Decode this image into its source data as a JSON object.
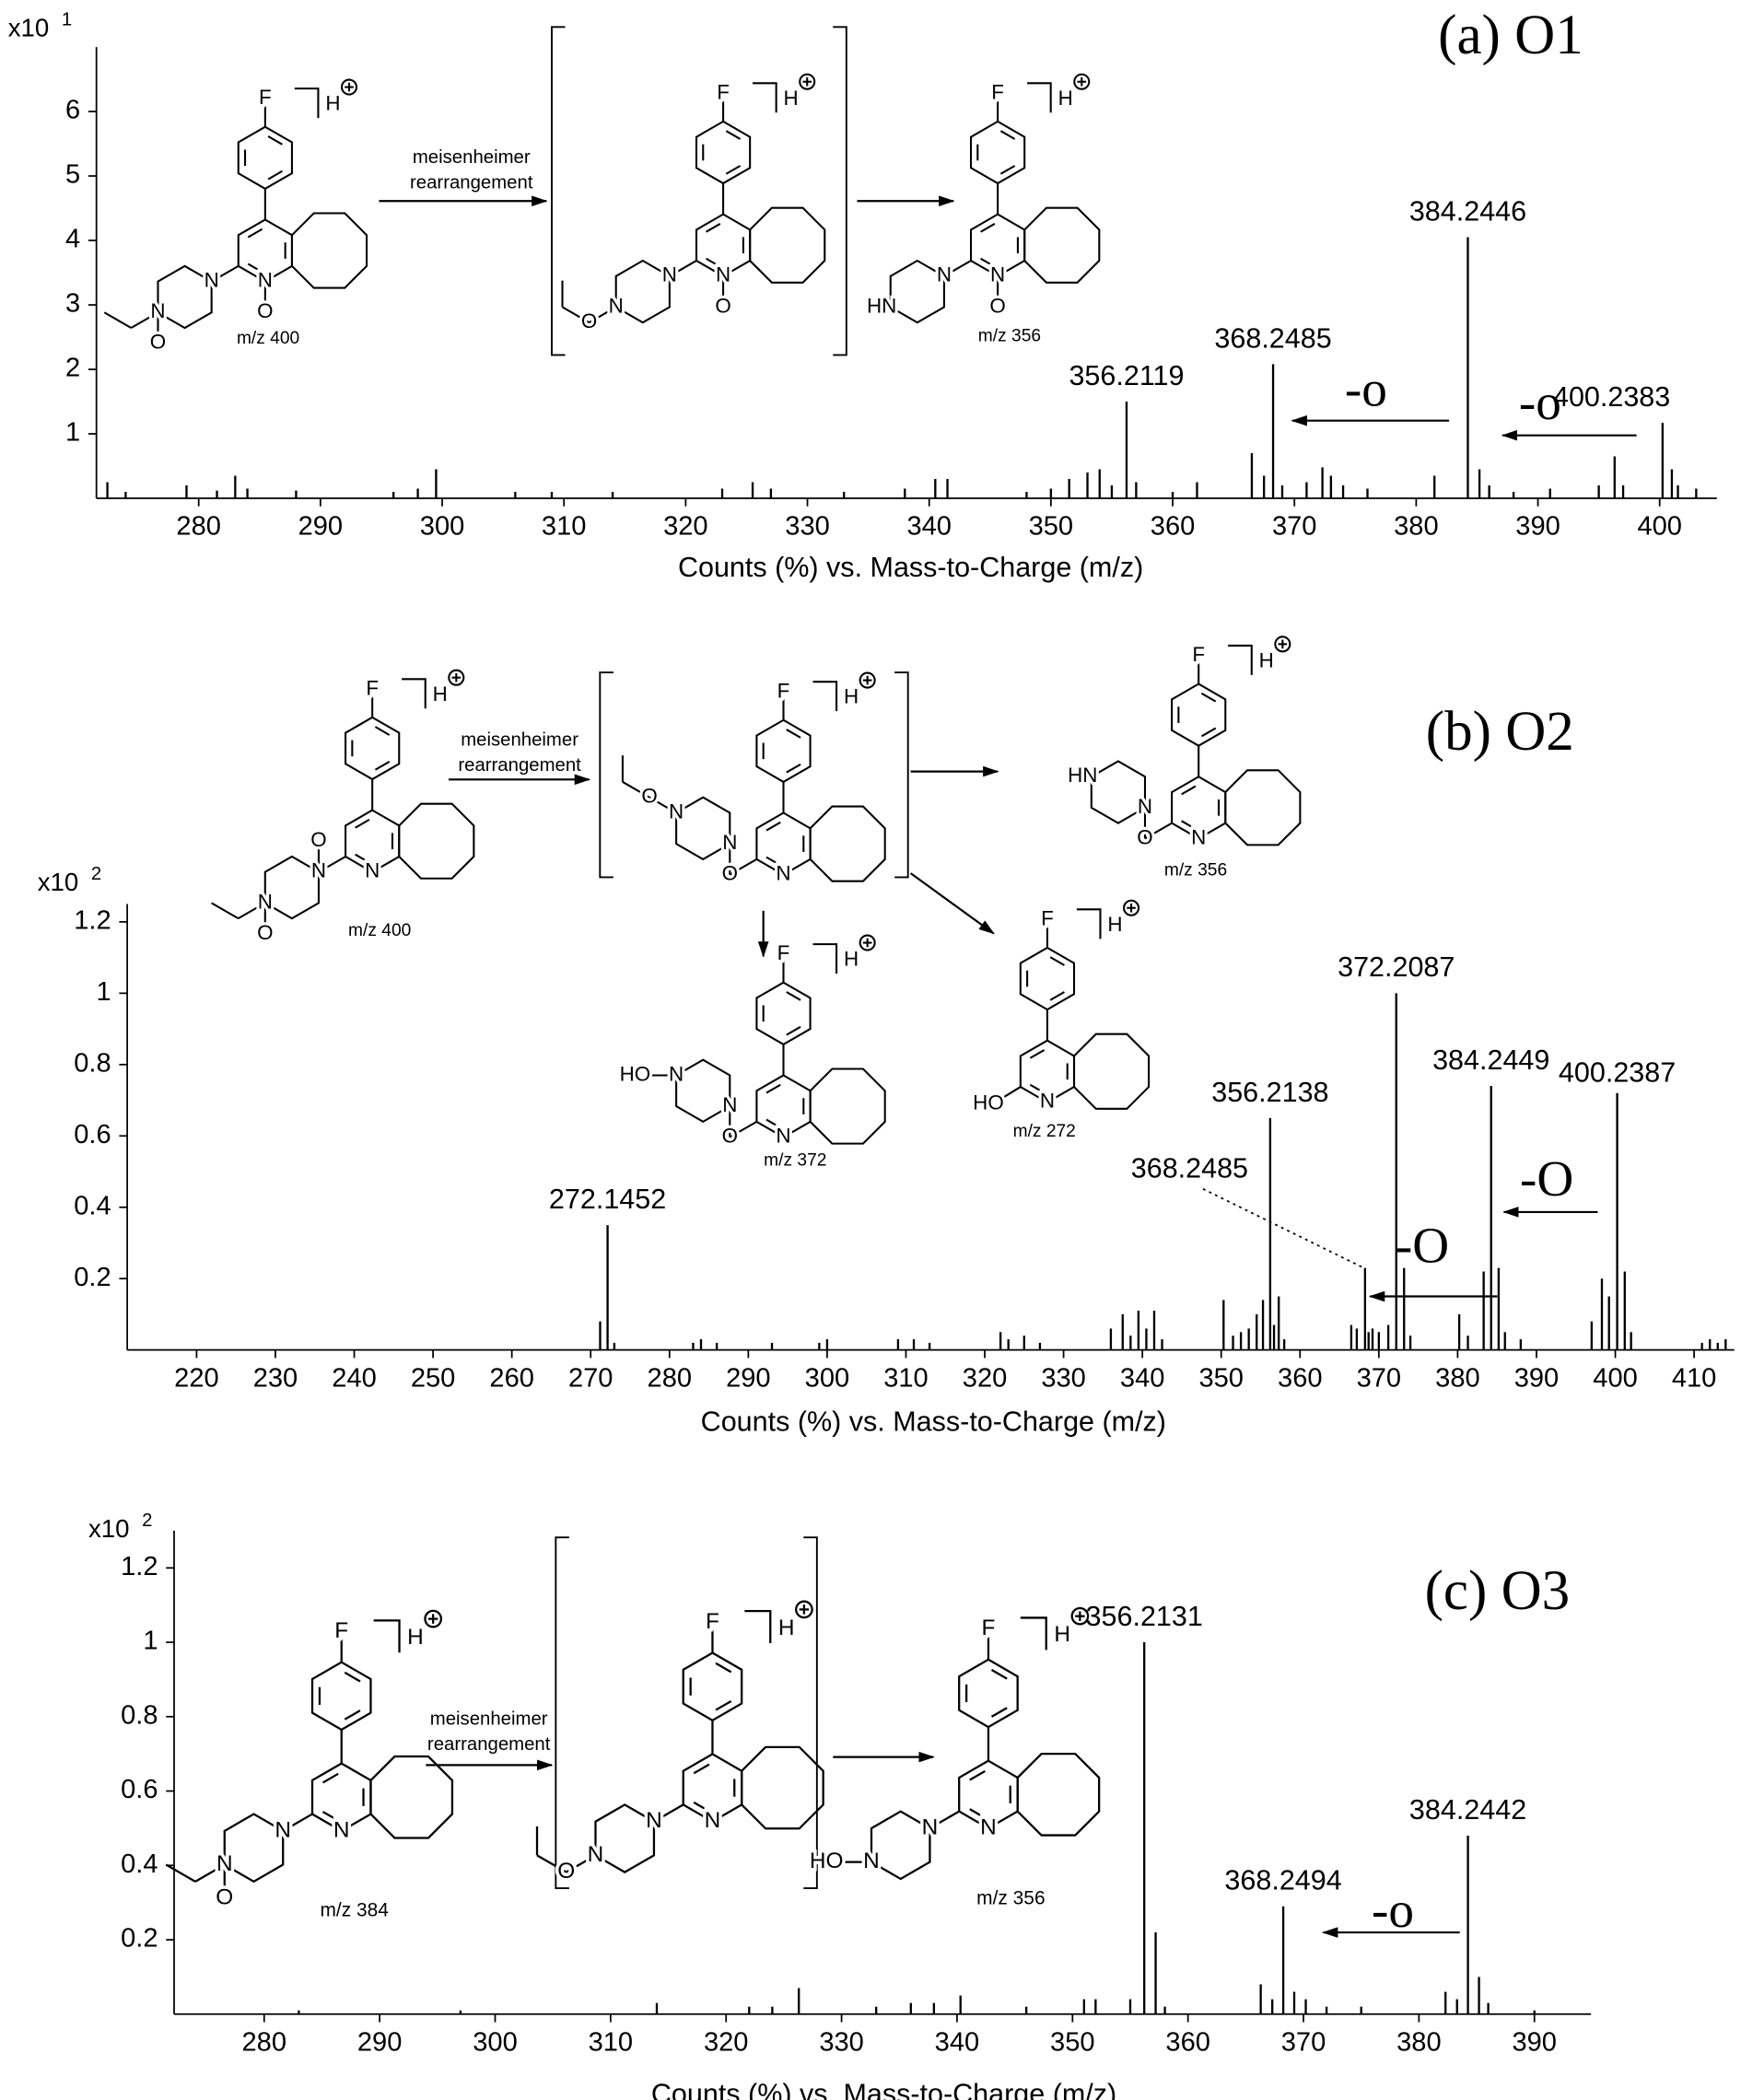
{
  "chart_data": [
    {
      "type": "spectrum",
      "title": "(a) O1",
      "x_label": "Counts (%) vs. Mass-to-Charge (m/z)",
      "y_multiplier": "x10",
      "y_exponent": 1,
      "color": "#000000",
      "xlim": [
        271.6,
        404.7
      ],
      "ylim": [
        0,
        7
      ],
      "xticks": [
        280,
        290,
        300,
        310,
        320,
        330,
        340,
        350,
        360,
        370,
        380,
        390,
        400
      ],
      "yticks": [
        1,
        2,
        3,
        4,
        5,
        6
      ],
      "peaks": {
        "x": [
          272.5,
          274,
          279,
          281.5,
          283,
          284,
          288,
          296,
          298,
          299.5,
          306,
          309,
          314,
          323,
          325.5,
          327,
          333,
          338,
          340.5,
          341.5,
          348,
          350,
          351.5,
          353,
          354,
          355,
          357,
          360,
          362,
          366.5,
          367.5,
          369,
          371,
          372.3,
          373,
          374,
          376,
          381.5,
          385.2,
          386,
          388,
          391,
          395,
          396.3,
          397,
          401,
          401.5,
          403
        ],
        "values": [
          0.25,
          0.1,
          0.2,
          0.12,
          0.35,
          0.15,
          0.12,
          0.1,
          0.15,
          0.45,
          0.1,
          0.1,
          0.1,
          0.15,
          0.25,
          0.15,
          0.1,
          0.15,
          0.3,
          0.3,
          0.1,
          0.15,
          0.3,
          0.4,
          0.45,
          0.2,
          0.25,
          0.1,
          0.25,
          0.7,
          0.35,
          0.2,
          0.25,
          0.48,
          0.35,
          0.2,
          0.15,
          0.35,
          0.45,
          0.2,
          0.1,
          0.15,
          0.2,
          0.65,
          0.2,
          0.45,
          0.2,
          0.15
        ]
      },
      "labeled_peaks": {
        "x": [
          356.2119,
          368.2485,
          384.2446,
          400.2383
        ],
        "values": [
          1.5,
          2.08,
          4.05,
          1.17
        ]
      },
      "scheme": {
        "arrow_label": [
          "meisenheimer",
          "rearrangement"
        ],
        "loss_labels": [
          "-o",
          "-o"
        ],
        "structures": [
          {
            "atoms": [
              "F",
              "N",
              "O",
              "N",
              "N",
              "O"
            ],
            "charge": "H",
            "caption": "m/z 400"
          },
          {
            "atoms": [
              "F",
              "N",
              "O",
              "N",
              "N",
              "O"
            ],
            "charge": "H"
          },
          {
            "atoms": [
              "F",
              "N",
              "O",
              "N",
              "HN"
            ],
            "charge": "H",
            "caption": "m/z 356"
          }
        ]
      }
    },
    {
      "type": "spectrum",
      "title": "(b) O2",
      "x_label": "Counts (%) vs. Mass-to-Charge (m/z)",
      "y_multiplier": "x10",
      "y_exponent": 2,
      "color": "#000000",
      "xlim": [
        211.2,
        415.1
      ],
      "ylim": [
        0,
        1.25
      ],
      "xticks": [
        220,
        230,
        240,
        250,
        260,
        270,
        280,
        290,
        300,
        310,
        320,
        330,
        340,
        350,
        360,
        370,
        380,
        390,
        400,
        410
      ],
      "yticks": [
        0.2,
        0.4,
        0.6,
        0.8,
        1,
        1.2
      ],
      "peaks": {
        "x": [
          271.2,
          273,
          283,
          284,
          286,
          293,
          299,
          300,
          309,
          311,
          313,
          322,
          323,
          325,
          327,
          336,
          337.5,
          338.5,
          339.5,
          340.5,
          341.5,
          342.5,
          350.3,
          351.5,
          352.5,
          353.5,
          354.5,
          355.3,
          356.7,
          357.3,
          358,
          366.5,
          367.2,
          368.7,
          369.2,
          370,
          371.2,
          373.2,
          374,
          380.2,
          381.3,
          383.3,
          385.2,
          386,
          388,
          397,
          398.3,
          399.2,
          401.2,
          402,
          411,
          412,
          413,
          414
        ],
        "values": [
          0.08,
          0.02,
          0.02,
          0.03,
          0.02,
          0.02,
          0.02,
          0.03,
          0.03,
          0.03,
          0.02,
          0.05,
          0.03,
          0.04,
          0.02,
          0.06,
          0.1,
          0.04,
          0.11,
          0.06,
          0.11,
          0.03,
          0.14,
          0.04,
          0.05,
          0.06,
          0.1,
          0.14,
          0.07,
          0.15,
          0.03,
          0.07,
          0.06,
          0.05,
          0.06,
          0.05,
          0.07,
          0.23,
          0.04,
          0.1,
          0.04,
          0.22,
          0.23,
          0.05,
          0.03,
          0.08,
          0.2,
          0.15,
          0.22,
          0.05,
          0.02,
          0.03,
          0.02,
          0.03
        ]
      },
      "labeled_peaks": {
        "x": [
          272.1452,
          356.2138,
          368.2485,
          372.2087,
          384.2449,
          400.2387
        ],
        "values": [
          0.35,
          0.65,
          0.23,
          1.0,
          0.74,
          0.72
        ]
      },
      "scheme": {
        "arrow_label": [
          "meisenheimer",
          "rearrangement"
        ],
        "loss_labels": [
          "-O",
          "-O"
        ],
        "structures": [
          {
            "atoms": [
              "F",
              "N",
              "N",
              "O",
              "N",
              "O"
            ],
            "charge": "H",
            "caption": "m/z 400"
          },
          {
            "atoms": [
              "F",
              "N",
              "O",
              "N",
              "N",
              "O"
            ],
            "charge": "H"
          },
          {
            "atoms": [
              "F",
              "N",
              "O",
              "N",
              "HN"
            ],
            "charge": "H",
            "caption": "m/z 356"
          },
          {
            "atoms": [
              "F",
              "N",
              "O",
              "N",
              "N",
              "HO"
            ],
            "charge": "H",
            "caption": "m/z 372"
          },
          {
            "atoms": [
              "F",
              "N",
              "HO"
            ],
            "charge": "H",
            "caption": "m/z 272"
          }
        ]
      }
    },
    {
      "type": "spectrum",
      "title": "(c) O3",
      "x_label": "Counts (%) vs. Mass-to-Charge (m/z)",
      "y_multiplier": "x10",
      "y_exponent": 2,
      "color": "#000000",
      "xlim": [
        272.2,
        394.9
      ],
      "ylim": [
        0,
        1.3
      ],
      "xticks": [
        280,
        290,
        300,
        310,
        320,
        330,
        340,
        350,
        360,
        370,
        380,
        390
      ],
      "yticks": [
        0.2,
        0.4,
        0.6,
        0.8,
        1,
        1.2
      ],
      "peaks": {
        "x": [
          283,
          297,
          314,
          322,
          324,
          326.3,
          333,
          336,
          338,
          340.3,
          346,
          351,
          352,
          355,
          357.2,
          358,
          366.3,
          367.3,
          369.2,
          370.2,
          372,
          375,
          382.3,
          383.3,
          385.2,
          386,
          390
        ],
        "values": [
          0.01,
          0.01,
          0.03,
          0.02,
          0.02,
          0.07,
          0.02,
          0.03,
          0.03,
          0.05,
          0.02,
          0.04,
          0.04,
          0.04,
          0.22,
          0.02,
          0.08,
          0.04,
          0.06,
          0.04,
          0.02,
          0.02,
          0.06,
          0.04,
          0.1,
          0.03,
          0.01
        ]
      },
      "labeled_peaks": {
        "x": [
          356.2131,
          368.2494,
          384.2442
        ],
        "values": [
          1.0,
          0.29,
          0.48
        ]
      },
      "scheme": {
        "arrow_label": [
          "meisenheimer",
          "rearrangement"
        ],
        "loss_labels": [
          "-o"
        ],
        "structures": [
          {
            "atoms": [
              "F",
              "N",
              "N",
              "N",
              "O"
            ],
            "charge": "H",
            "caption": "m/z 384"
          },
          {
            "atoms": [
              "F",
              "N",
              "N",
              "N",
              "O"
            ],
            "charge": "H"
          },
          {
            "atoms": [
              "F",
              "N",
              "N",
              "N",
              "HO"
            ],
            "charge": "H",
            "caption": "m/z 356"
          }
        ]
      }
    }
  ]
}
